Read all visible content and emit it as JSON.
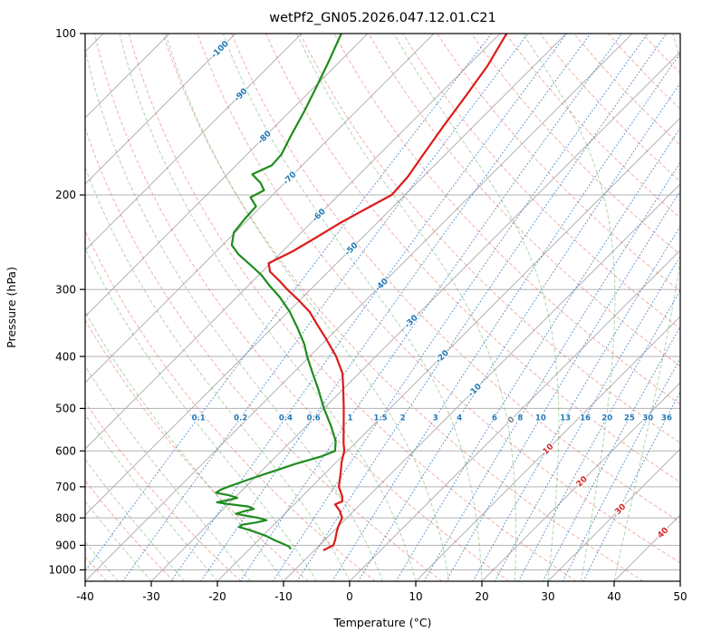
{
  "chart_data": {
    "type": "skewt_log_p",
    "title": "wetPf2_GN05.2026.047.12.01.C21",
    "xlabel": "Temperature (°C)",
    "ylabel": "Pressure (hPa)",
    "axes": {
      "x_ticks": [
        -40,
        -30,
        -20,
        -10,
        0,
        10,
        20,
        30,
        40,
        50
      ],
      "y_ticks": [
        100,
        200,
        300,
        400,
        500,
        600,
        700,
        800,
        900,
        1000
      ],
      "x_range_c": [
        -40,
        50
      ],
      "pressure_range_hpa": [
        100,
        1050
      ],
      "skew_degrees": 45,
      "grid": true
    },
    "isotherms": {
      "step_c": 10
    },
    "isotherm_labels": [
      {
        "value": -100,
        "pressure": 107,
        "color": "#1f77b4"
      },
      {
        "value": -90,
        "pressure": 130,
        "color": "#1f77b4"
      },
      {
        "value": -80,
        "pressure": 156,
        "color": "#1f77b4"
      },
      {
        "value": -70,
        "pressure": 186,
        "color": "#1f77b4"
      },
      {
        "value": -60,
        "pressure": 218,
        "color": "#1f77b4"
      },
      {
        "value": -50,
        "pressure": 252,
        "color": "#1f77b4"
      },
      {
        "value": -40,
        "pressure": 294,
        "color": "#1f77b4"
      },
      {
        "value": -30,
        "pressure": 344,
        "color": "#1f77b4"
      },
      {
        "value": -20,
        "pressure": 400,
        "color": "#1f77b4"
      },
      {
        "value": -10,
        "pressure": 462,
        "color": "#1f77b4"
      },
      {
        "value": 0,
        "pressure": 525,
        "color": "#7f7f7f"
      },
      {
        "value": 10,
        "pressure": 595,
        "color": "#d62728"
      },
      {
        "value": 20,
        "pressure": 684,
        "color": "#d62728"
      },
      {
        "value": 30,
        "pressure": 770,
        "color": "#d62728"
      },
      {
        "value": 40,
        "pressure": 852,
        "color": "#d62728"
      }
    ],
    "mixing_ratio_g_kg": [
      0.1,
      0.2,
      0.4,
      0.6,
      1,
      1.5,
      2,
      3,
      4,
      6,
      8,
      10,
      13,
      16,
      20,
      25,
      30,
      36
    ],
    "mixing_label_pressure": 520,
    "dry_adiabats_c": {
      "start": -40,
      "end": 190,
      "step": 10
    },
    "moist_adiabats_c": {
      "start": -40,
      "end": 40,
      "step": 5
    },
    "series": [
      {
        "name": "temperature",
        "color": "#dd1a1a",
        "width": 2.2,
        "points": [
          [
            100,
            -59
          ],
          [
            115,
            -57
          ],
          [
            130,
            -55.8
          ],
          [
            150,
            -54.5
          ],
          [
            170,
            -53.2
          ],
          [
            185,
            -52.3
          ],
          [
            200,
            -52
          ],
          [
            210,
            -53.5
          ],
          [
            225,
            -55.5
          ],
          [
            240,
            -57
          ],
          [
            255,
            -58.5
          ],
          [
            268,
            -60.3
          ],
          [
            278,
            -58.8
          ],
          [
            290,
            -55.8
          ],
          [
            300,
            -53.5
          ],
          [
            315,
            -50
          ],
          [
            330,
            -46.8
          ],
          [
            350,
            -43.5
          ],
          [
            370,
            -40.3
          ],
          [
            400,
            -36
          ],
          [
            430,
            -32.5
          ],
          [
            460,
            -30
          ],
          [
            500,
            -27
          ],
          [
            540,
            -24.3
          ],
          [
            580,
            -21.8
          ],
          [
            600,
            -20.5
          ],
          [
            630,
            -19.2
          ],
          [
            660,
            -17.7
          ],
          [
            700,
            -15.9
          ],
          [
            730,
            -13.9
          ],
          [
            745,
            -13.2
          ],
          [
            755,
            -13.8
          ],
          [
            775,
            -12.2
          ],
          [
            800,
            -10.7
          ],
          [
            830,
            -10
          ],
          [
            850,
            -9.4
          ],
          [
            880,
            -8.4
          ],
          [
            900,
            -7.9
          ],
          [
            918,
            -8.6
          ]
        ]
      },
      {
        "name": "dewpoint",
        "color": "#1e8c1e",
        "width": 2.2,
        "points": [
          [
            100,
            -84
          ],
          [
            112,
            -81.8
          ],
          [
            125,
            -79.8
          ],
          [
            140,
            -77.8
          ],
          [
            155,
            -76.2
          ],
          [
            168,
            -74.8
          ],
          [
            176,
            -74.6
          ],
          [
            183,
            -76.2
          ],
          [
            190,
            -73.6
          ],
          [
            196,
            -72
          ],
          [
            202,
            -73
          ],
          [
            210,
            -70.8
          ],
          [
            222,
            -70.6
          ],
          [
            235,
            -70.2
          ],
          [
            248,
            -68.6
          ],
          [
            258,
            -66.2
          ],
          [
            270,
            -62.8
          ],
          [
            282,
            -59.6
          ],
          [
            295,
            -56.8
          ],
          [
            310,
            -53.5
          ],
          [
            330,
            -49.8
          ],
          [
            355,
            -46
          ],
          [
            380,
            -42.6
          ],
          [
            400,
            -40.4
          ],
          [
            430,
            -37
          ],
          [
            460,
            -33.8
          ],
          [
            500,
            -30
          ],
          [
            540,
            -26.2
          ],
          [
            575,
            -23.3
          ],
          [
            600,
            -21.9
          ],
          [
            615,
            -23.2
          ],
          [
            635,
            -26
          ],
          [
            655,
            -28.2
          ],
          [
            675,
            -30.3
          ],
          [
            695,
            -32.2
          ],
          [
            708,
            -33.3
          ],
          [
            718,
            -33.6
          ],
          [
            726,
            -31.2
          ],
          [
            734,
            -29.6
          ],
          [
            741,
            -30.6
          ],
          [
            748,
            -32
          ],
          [
            754,
            -30
          ],
          [
            762,
            -26.6
          ],
          [
            770,
            -25.4
          ],
          [
            778,
            -26.6
          ],
          [
            786,
            -27.4
          ],
          [
            793,
            -25.4
          ],
          [
            800,
            -23.4
          ],
          [
            808,
            -21.8
          ],
          [
            816,
            -23
          ],
          [
            824,
            -24.8
          ],
          [
            832,
            -24.9
          ],
          [
            842,
            -23
          ],
          [
            852,
            -21.4
          ],
          [
            865,
            -19.4
          ],
          [
            880,
            -17.6
          ],
          [
            895,
            -15.6
          ],
          [
            905,
            -14.4
          ],
          [
            912,
            -13.9
          ]
        ]
      }
    ],
    "style": {
      "grid_color": "#b3b3b3",
      "isotherm_color": "#b3b3b3",
      "frame_color": "#000000",
      "dry_adiabat_color": "rgba(225,80,70,0.45)",
      "moist_adiabat_color": "rgba(55,150,55,0.40)",
      "mixing_ratio_color": "rgba(55,120,190,0.80)"
    }
  }
}
